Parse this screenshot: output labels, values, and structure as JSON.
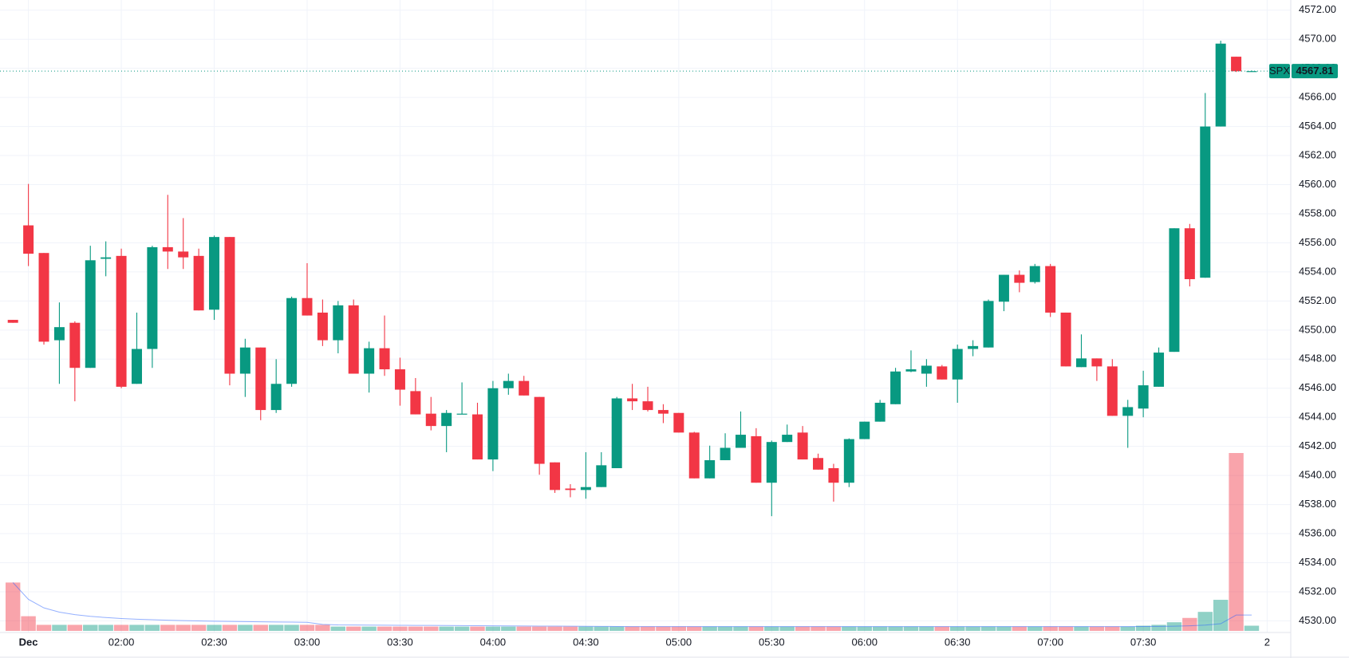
{
  "chart_data": {
    "type": "candlestick",
    "symbol": "SPX",
    "last_price": 4567.81,
    "next_day_label": "2",
    "up_color": "#089981",
    "down_color": "#f23645",
    "grid": true,
    "categories": [
      null,
      "Dec",
      null,
      null,
      null,
      null,
      null,
      "02:00",
      null,
      null,
      null,
      null,
      null,
      "02:30",
      null,
      null,
      null,
      null,
      null,
      "03:00",
      null,
      null,
      null,
      null,
      null,
      "03:30",
      null,
      null,
      null,
      null,
      null,
      "04:00",
      null,
      null,
      null,
      null,
      null,
      "04:30",
      null,
      null,
      null,
      null,
      null,
      "05:00",
      null,
      null,
      null,
      null,
      null,
      "05:30",
      null,
      null,
      null,
      null,
      null,
      "06:00",
      null,
      null,
      null,
      null,
      null,
      "06:30",
      null,
      null,
      null,
      null,
      null,
      "07:00",
      null,
      null,
      null,
      null,
      null,
      "07:30",
      null,
      null,
      null,
      null,
      null,
      null,
      null
    ],
    "open": [
      4550.7,
      4557.2,
      4555.3,
      4549.3,
      4550.5,
      4547.4,
      4554.9,
      4555.1,
      4546.3,
      4548.7,
      4555.7,
      4555.4,
      4555.1,
      4551.4,
      4556.4,
      4547.0,
      4548.8,
      4544.5,
      4546.3,
      4552.2,
      4551.2,
      4549.3,
      4551.7,
      4547.0,
      4548.75,
      4547.3,
      4545.8,
      4544.25,
      4543.4,
      4544.2,
      4544.2,
      4541.1,
      4546.0,
      4546.5,
      4545.4,
      4540.9,
      4539.1,
      4539.0,
      4539.2,
      4540.5,
      4545.3,
      4545.1,
      4544.5,
      4544.3,
      4542.95,
      4539.8,
      4541.05,
      4541.9,
      4542.7,
      4539.5,
      4542.3,
      4542.95,
      4541.2,
      4540.5,
      4539.5,
      4542.5,
      4543.7,
      4544.9,
      4547.15,
      4547.0,
      4547.5,
      4546.6,
      4548.7,
      4548.8,
      4551.95,
      4553.8,
      4553.3,
      4554.4,
      4551.2,
      4547.45,
      4548.05,
      4547.5,
      4544.1,
      4544.6,
      4546.1,
      4548.5,
      4557.0,
      4553.6,
      4564.0,
      4568.8,
      4567.8
    ],
    "high": [
      4550.7,
      4560.05,
      4555.3,
      4551.9,
      4550.6,
      4555.8,
      4556.1,
      4555.6,
      4551.2,
      4555.8,
      4559.3,
      4557.7,
      4555.6,
      4556.5,
      4556.4,
      4549.4,
      4548.8,
      4548.0,
      4552.3,
      4554.6,
      4552.1,
      4552.0,
      4552.1,
      4549.2,
      4551.0,
      4548.1,
      4546.7,
      4545.4,
      4544.5,
      4546.4,
      4545.0,
      4546.5,
      4547.0,
      4546.85,
      4545.4,
      4540.9,
      4539.4,
      4541.6,
      4541.6,
      4545.4,
      4546.3,
      4546.1,
      4544.9,
      4544.3,
      4543.0,
      4542.05,
      4542.9,
      4544.4,
      4543.25,
      4542.4,
      4543.5,
      4543.4,
      4541.5,
      4540.8,
      4542.55,
      4543.7,
      4545.2,
      4547.4,
      4548.6,
      4548.0,
      4547.6,
      4549.0,
      4549.3,
      4552.1,
      4553.8,
      4554.1,
      4554.55,
      4554.55,
      4551.2,
      4549.7,
      4548.05,
      4548.0,
      4545.2,
      4547.2,
      4548.8,
      4557.0,
      4557.3,
      4566.3,
      4569.9,
      4568.8,
      4567.85
    ],
    "low": [
      4550.5,
      4554.4,
      4549.0,
      4546.3,
      4545.1,
      4547.4,
      4553.7,
      4546.0,
      4546.3,
      4547.4,
      4554.2,
      4554.2,
      4551.35,
      4550.7,
      4546.2,
      4545.4,
      4543.8,
      4544.3,
      4546.1,
      4551.0,
      4548.9,
      4548.4,
      4547.0,
      4545.7,
      4546.85,
      4544.8,
      4544.2,
      4543.1,
      4541.6,
      4544.2,
      4541.1,
      4540.3,
      4545.55,
      4545.5,
      4540.05,
      4538.8,
      4538.5,
      4538.4,
      4539.2,
      4540.5,
      4544.5,
      4544.4,
      4543.6,
      4542.95,
      4539.8,
      4539.8,
      4541.05,
      4541.9,
      4539.5,
      4537.2,
      4542.3,
      4541.1,
      4540.4,
      4538.2,
      4539.2,
      4542.5,
      4543.7,
      4544.9,
      4547.1,
      4546.1,
      4546.6,
      4545.0,
      4548.2,
      4548.8,
      4551.3,
      4552.6,
      4553.2,
      4550.9,
      4547.5,
      4547.45,
      4546.5,
      4544.1,
      4541.9,
      4544.0,
      4546.1,
      4548.5,
      4553.0,
      4553.6,
      4564.0,
      4567.75,
      4567.78
    ],
    "close": [
      4550.5,
      4555.25,
      4549.2,
      4550.2,
      4547.4,
      4554.8,
      4555.0,
      4546.1,
      4548.7,
      4555.7,
      4555.4,
      4555.0,
      4551.35,
      4556.4,
      4547.0,
      4548.8,
      4544.5,
      4546.3,
      4552.2,
      4551.0,
      4549.3,
      4551.7,
      4547.0,
      4548.75,
      4547.3,
      4545.9,
      4544.2,
      4543.4,
      4544.3,
      4544.25,
      4541.1,
      4546.0,
      4546.5,
      4545.5,
      4540.8,
      4539.0,
      4539.0,
      4539.2,
      4540.7,
      4545.3,
      4545.1,
      4544.5,
      4544.25,
      4542.95,
      4539.8,
      4541.05,
      4541.9,
      4542.8,
      4539.5,
      4542.3,
      4542.8,
      4541.1,
      4540.4,
      4539.5,
      4542.5,
      4543.7,
      4545.0,
      4547.15,
      4547.3,
      4547.55,
      4546.6,
      4548.7,
      4548.9,
      4552.0,
      4553.8,
      4553.25,
      4554.4,
      4551.2,
      4547.5,
      4548.05,
      4547.5,
      4544.1,
      4544.7,
      4546.2,
      4548.45,
      4557.0,
      4553.5,
      4564.0,
      4569.7,
      4567.8,
      4567.81
    ],
    "volume": [
      56,
      17,
      7,
      7,
      7,
      7,
      7,
      7,
      7,
      7,
      7,
      7,
      7,
      7,
      7,
      7,
      7,
      7,
      7,
      7,
      7,
      5,
      5,
      5,
      5,
      5,
      5,
      5,
      5,
      5,
      5,
      5,
      5,
      5,
      5,
      5,
      5,
      5,
      5,
      5,
      5,
      5,
      5,
      5,
      5,
      5,
      5,
      5,
      5,
      5,
      5,
      5,
      5,
      5,
      5,
      5,
      5,
      5,
      5,
      5,
      5,
      5,
      5,
      5,
      5,
      5,
      5,
      5,
      5,
      5,
      5,
      5,
      5,
      6,
      7,
      10,
      15,
      22,
      36,
      206,
      6
    ],
    "ylim": [
      4529.2,
      4572.7
    ],
    "yticks": [
      {
        "value": 4530,
        "label": "4530.00"
      },
      {
        "value": 4532,
        "label": "4532.00"
      },
      {
        "value": 4534,
        "label": "4534.00"
      },
      {
        "value": 4536,
        "label": "4536.00"
      },
      {
        "value": 4538,
        "label": "4538.00"
      },
      {
        "value": 4540,
        "label": "4540.00"
      },
      {
        "value": 4542,
        "label": "4542.00"
      },
      {
        "value": 4544,
        "label": "4544.00"
      },
      {
        "value": 4546,
        "label": "4546.00"
      },
      {
        "value": 4548,
        "label": "4548.00"
      },
      {
        "value": 4550,
        "label": "4550.00"
      },
      {
        "value": 4552,
        "label": "4552.00"
      },
      {
        "value": 4554,
        "label": "4554.00"
      },
      {
        "value": 4556,
        "label": "4556.00"
      },
      {
        "value": 4558,
        "label": "4558.00"
      },
      {
        "value": 4560,
        "label": "4560.00"
      },
      {
        "value": 4562,
        "label": "4562.00"
      },
      {
        "value": 4564,
        "label": "4564.00"
      },
      {
        "value": 4566,
        "label": "4566.00"
      },
      {
        "value": 4568,
        "label": "4568.00"
      },
      {
        "value": 4570,
        "label": "4570.00"
      },
      {
        "value": 4572,
        "label": "4572.00"
      }
    ]
  }
}
